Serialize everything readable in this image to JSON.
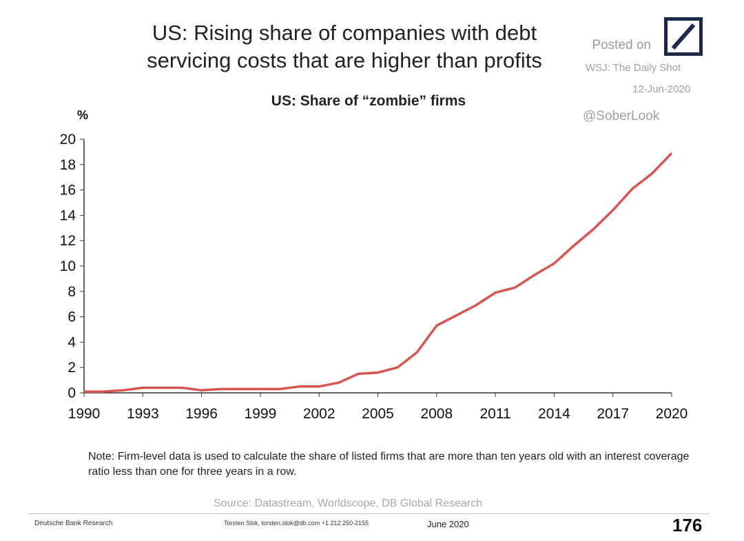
{
  "header": {
    "title_line1": "US: Rising share of companies with debt",
    "title_line2": "servicing costs that are higher than profits",
    "posted_on": "Posted on",
    "publication": "WSJ: The Daily Shot",
    "posted_date": "12-Jun-2020",
    "handle": "@SoberLook"
  },
  "colors": {
    "line": "#d9534f",
    "axis": "#333333",
    "logo": "#1b2a4a"
  },
  "chart_data": {
    "type": "line",
    "title": "US: Share of “zombie” firms",
    "ylabel": "%",
    "xlabel": "",
    "ylim": [
      0,
      20
    ],
    "xlim": [
      1990,
      2020
    ],
    "yticks": [
      "0",
      "2",
      "4",
      "6",
      "8",
      "10",
      "12",
      "14",
      "16",
      "18",
      "20"
    ],
    "xticks": [
      "1990",
      "1993",
      "1996",
      "1999",
      "2002",
      "2005",
      "2008",
      "2011",
      "2014",
      "2017",
      "2020"
    ],
    "grid": false,
    "series": [
      {
        "x": [
          1990,
          1991,
          1992,
          1993,
          1994,
          1995,
          1996,
          1997,
          1998,
          1999,
          2000,
          2001,
          2002,
          2003,
          2004,
          2005,
          2006,
          2007,
          2008,
          2009,
          2010,
          2011,
          2012,
          2013,
          2014,
          2015,
          2016,
          2017,
          2018,
          2019,
          2020
        ],
        "y": [
          0.1,
          0.1,
          0.2,
          0.4,
          0.4,
          0.4,
          0.2,
          0.3,
          0.3,
          0.3,
          0.3,
          0.5,
          0.5,
          0.8,
          1.5,
          1.6,
          2.0,
          3.2,
          5.3,
          6.1,
          6.9,
          7.9,
          8.3,
          9.3,
          10.2,
          11.6,
          12.9,
          14.4,
          16.1,
          17.3,
          18.9
        ]
      }
    ]
  },
  "footer": {
    "note": "Note: Firm-level data is used to calculate the share of listed firms that are more than ten years old with an interest coverage ratio less than one for three years in a row.",
    "source": "Source: Datastream, Worldscope, DB Global Research",
    "org": "Deutsche Bank Research",
    "contact": "Torsten Slok, torsten.slok@db.com +1 212 250-2155",
    "date": "June 2020",
    "page": "176"
  }
}
